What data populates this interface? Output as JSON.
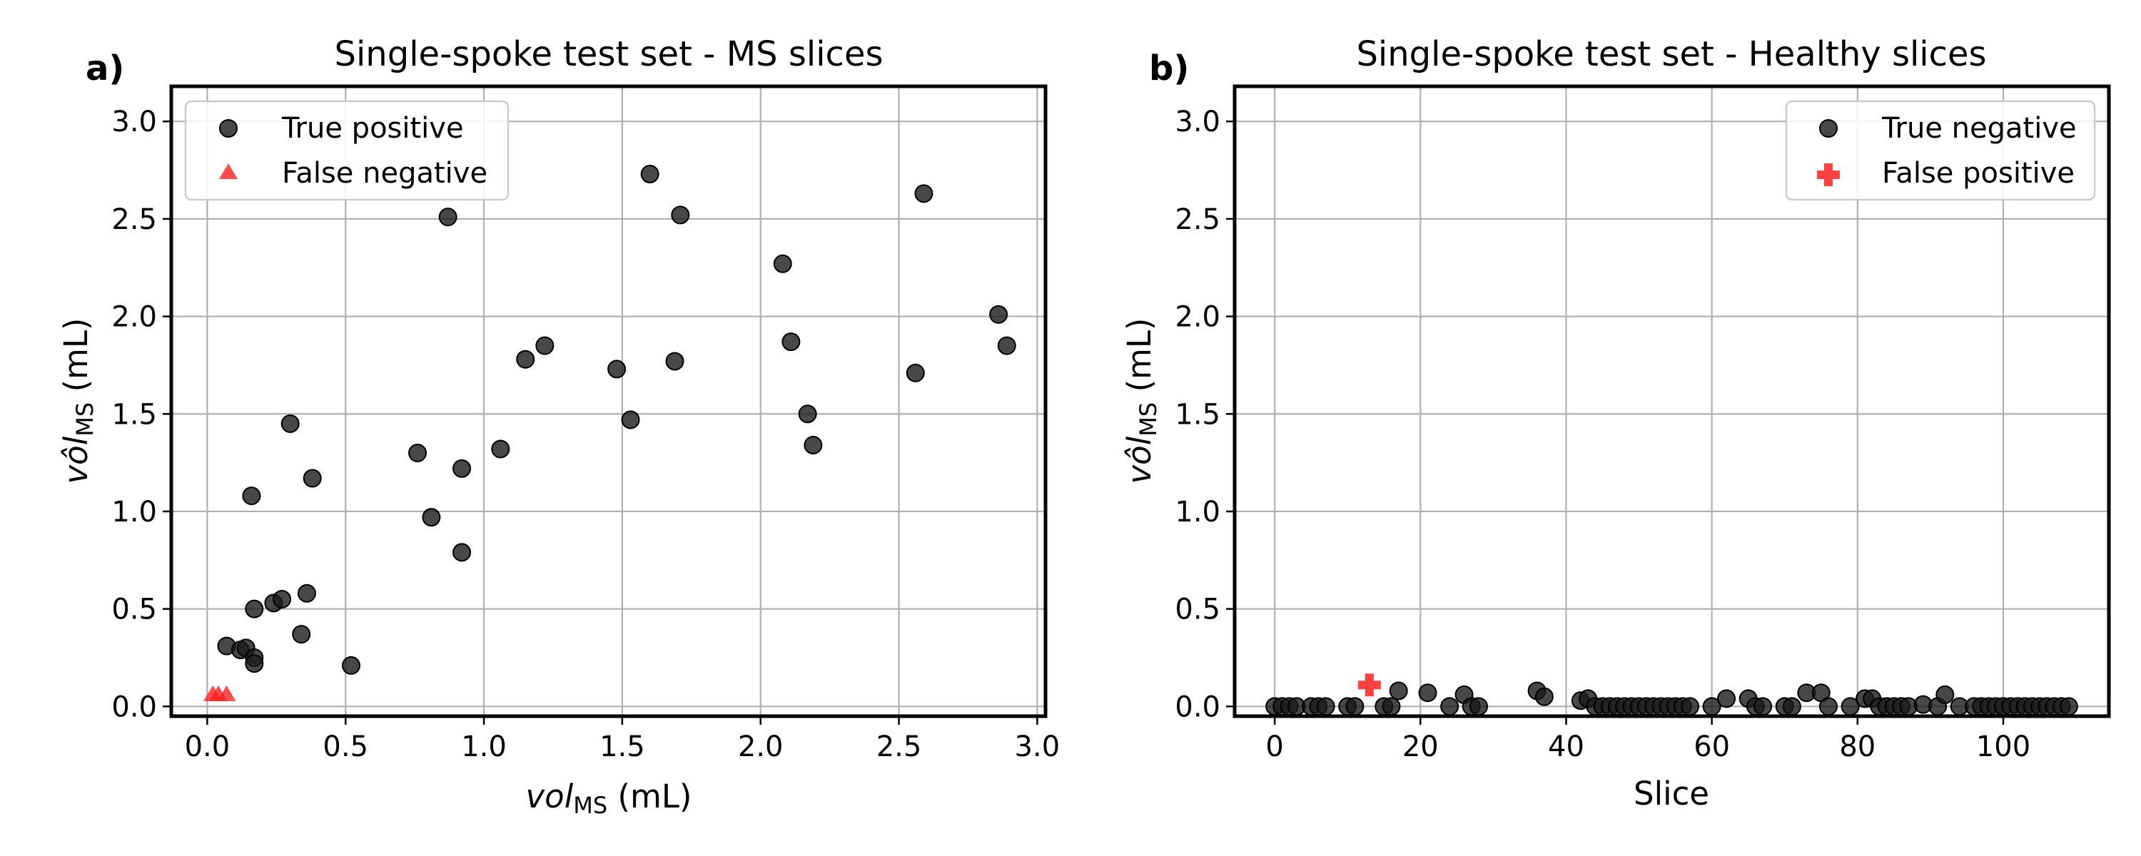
{
  "chart_data": [
    {
      "type": "scatter",
      "panel_label": "a)",
      "title": "Single-spoke test set - MS slices",
      "xlabel_main": "vol",
      "xlabel_sub": "MS",
      "xlabel_unit": " (mL)",
      "ylabel_main": "vôl",
      "ylabel_sub": "MS",
      "ylabel_unit": " (mL)",
      "xlim": [
        -0.13,
        3.03
      ],
      "ylim": [
        -0.05,
        3.18
      ],
      "xticks": [
        0.0,
        0.5,
        1.0,
        1.5,
        2.0,
        2.5,
        3.0
      ],
      "xtick_labels": [
        "0.0",
        "0.5",
        "1.0",
        "1.5",
        "2.0",
        "2.5",
        "3.0"
      ],
      "yticks": [
        0.0,
        0.5,
        1.0,
        1.5,
        2.0,
        2.5,
        3.0
      ],
      "ytick_labels": [
        "0.0",
        "0.5",
        "1.0",
        "1.5",
        "2.0",
        "2.5",
        "3.0"
      ],
      "grid": true,
      "legend_position": "top-left",
      "series": [
        {
          "name": "True positive",
          "marker": "circle",
          "color": "#1a1a1a",
          "points": [
            [
              0.07,
              0.31
            ],
            [
              0.12,
              0.29
            ],
            [
              0.14,
              0.3
            ],
            [
              0.17,
              0.25
            ],
            [
              0.17,
              0.22
            ],
            [
              0.16,
              1.08
            ],
            [
              0.17,
              0.5
            ],
            [
              0.24,
              0.53
            ],
            [
              0.27,
              0.55
            ],
            [
              0.3,
              1.45
            ],
            [
              0.34,
              0.37
            ],
            [
              0.36,
              0.58
            ],
            [
              0.38,
              1.17
            ],
            [
              0.52,
              0.21
            ],
            [
              0.76,
              1.3
            ],
            [
              0.81,
              0.97
            ],
            [
              0.87,
              2.51
            ],
            [
              0.92,
              1.22
            ],
            [
              0.92,
              0.79
            ],
            [
              1.06,
              1.32
            ],
            [
              1.15,
              1.78
            ],
            [
              1.22,
              1.85
            ],
            [
              1.48,
              1.73
            ],
            [
              1.53,
              1.47
            ],
            [
              1.6,
              2.73
            ],
            [
              1.69,
              1.77
            ],
            [
              1.71,
              2.52
            ],
            [
              2.08,
              2.27
            ],
            [
              2.11,
              1.87
            ],
            [
              2.17,
              1.5
            ],
            [
              2.19,
              1.34
            ],
            [
              2.56,
              1.71
            ],
            [
              2.59,
              2.63
            ],
            [
              2.86,
              2.01
            ],
            [
              2.89,
              1.85
            ]
          ]
        },
        {
          "name": "False negative",
          "marker": "triangle",
          "color": "#ff2020",
          "points": [
            [
              0.02,
              0.06
            ],
            [
              0.04,
              0.06
            ],
            [
              0.07,
              0.06
            ]
          ]
        }
      ]
    },
    {
      "type": "scatter",
      "panel_label": "b)",
      "title": "Single-spoke test set - Healthy slices",
      "xlabel": "Slice",
      "ylabel_main": "vôl",
      "ylabel_sub": "MS",
      "ylabel_unit": " (mL)",
      "xlim": [
        -5.5,
        114.5
      ],
      "ylim": [
        -0.05,
        3.18
      ],
      "xticks": [
        0,
        20,
        40,
        60,
        80,
        100
      ],
      "xtick_labels": [
        "0",
        "20",
        "40",
        "60",
        "80",
        "100"
      ],
      "yticks": [
        0.0,
        0.5,
        1.0,
        1.5,
        2.0,
        2.5,
        3.0
      ],
      "ytick_labels": [
        "0.0",
        "0.5",
        "1.0",
        "1.5",
        "2.0",
        "2.5",
        "3.0"
      ],
      "grid": true,
      "legend_position": "top-right",
      "series": [
        {
          "name": "True negative",
          "marker": "circle",
          "color": "#1a1a1a",
          "points": [
            [
              0,
              0
            ],
            [
              1,
              0
            ],
            [
              2,
              0
            ],
            [
              3,
              0
            ],
            [
              5,
              0
            ],
            [
              6,
              0
            ],
            [
              7,
              0
            ],
            [
              10,
              0
            ],
            [
              11,
              0
            ],
            [
              15,
              0
            ],
            [
              16,
              0
            ],
            [
              17,
              0.08
            ],
            [
              21,
              0.07
            ],
            [
              24,
              0
            ],
            [
              26,
              0.06
            ],
            [
              27,
              0
            ],
            [
              28,
              0
            ],
            [
              36,
              0.08
            ],
            [
              37,
              0.05
            ],
            [
              42,
              0.03
            ],
            [
              43,
              0.04
            ],
            [
              44,
              0
            ],
            [
              45,
              0
            ],
            [
              46,
              0
            ],
            [
              47,
              0
            ],
            [
              48,
              0
            ],
            [
              49,
              0
            ],
            [
              50,
              0
            ],
            [
              51,
              0
            ],
            [
              52,
              0
            ],
            [
              53,
              0
            ],
            [
              54,
              0
            ],
            [
              55,
              0
            ],
            [
              56,
              0
            ],
            [
              57,
              0
            ],
            [
              60,
              0
            ],
            [
              62,
              0.04
            ],
            [
              65,
              0.04
            ],
            [
              66,
              0
            ],
            [
              67,
              0
            ],
            [
              70,
              0
            ],
            [
              71,
              0
            ],
            [
              73,
              0.07
            ],
            [
              75,
              0.07
            ],
            [
              76,
              0
            ],
            [
              79,
              0
            ],
            [
              81,
              0.04
            ],
            [
              82,
              0.04
            ],
            [
              83,
              0
            ],
            [
              84,
              0
            ],
            [
              85,
              0
            ],
            [
              86,
              0
            ],
            [
              87,
              0
            ],
            [
              89,
              0.01
            ],
            [
              91,
              0
            ],
            [
              92,
              0.06
            ],
            [
              94,
              0
            ],
            [
              96,
              0
            ],
            [
              97,
              0
            ],
            [
              98,
              0
            ],
            [
              99,
              0
            ],
            [
              100,
              0
            ],
            [
              101,
              0
            ],
            [
              102,
              0
            ],
            [
              103,
              0
            ],
            [
              104,
              0
            ],
            [
              105,
              0
            ],
            [
              106,
              0
            ],
            [
              107,
              0
            ],
            [
              108,
              0
            ],
            [
              109,
              0
            ]
          ]
        },
        {
          "name": "False positive",
          "marker": "plus",
          "color": "#ff2020",
          "points": [
            [
              13,
              0.11
            ]
          ]
        }
      ]
    }
  ]
}
